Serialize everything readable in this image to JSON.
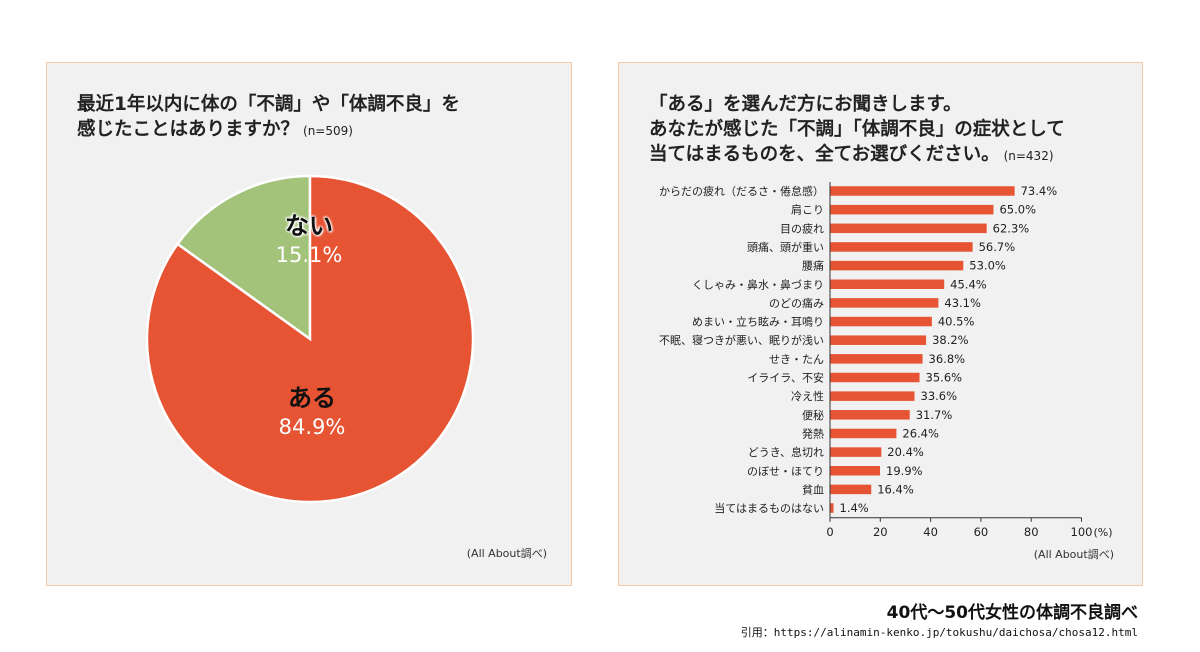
{
  "left_panel": {
    "title_line1": "最近1年以内に体の「不調」や「体調不良」を",
    "title_line2": "感じたことはありますか？",
    "n": "(n=509)",
    "source": "(All About調べ)"
  },
  "right_panel": {
    "title_line1": "「ある」を選んだ方にお聞きします。",
    "title_line2": "あなたが感じた「不調」「体調不良」の症状として",
    "title_line3": "当てはまるものを、全てお選びください。",
    "n": "(n=432)",
    "source": "(All About調べ)",
    "axis_unit": "(%)"
  },
  "footer": {
    "title": "40代〜50代女性の体調不良調べ",
    "citation": "引用：https://alinamin-kenko.jp/tokushu/daichosa/chosa12.html"
  },
  "colors": {
    "ari": "#e65433",
    "nai": "#a3c27a",
    "bar": "#e65433"
  },
  "chart_data": [
    {
      "type": "pie",
      "slices": [
        {
          "label": "ない",
          "value": 15.1,
          "display": "15.1%",
          "color": "#a3c27a"
        },
        {
          "label": "ある",
          "value": 84.9,
          "display": "84.9%",
          "color": "#e65433"
        }
      ]
    },
    {
      "type": "bar",
      "orientation": "horizontal",
      "categories": [
        "からだの疲れ（だるさ・倦怠感）",
        "肩こり",
        "目の疲れ",
        "頭痛、頭が重い",
        "腰痛",
        "くしゃみ・鼻水・鼻づまり",
        "のどの痛み",
        "めまい・立ち眩み・耳鳴り",
        "不眠、寝つきが悪い、眠りが浅い",
        "せき・たん",
        "イライラ、不安",
        "冷え性",
        "便秘",
        "発熱",
        "どうき、息切れ",
        "のぼせ・ほてり",
        "貧血",
        "当てはまるものはない"
      ],
      "values": [
        73.4,
        65.0,
        62.3,
        56.7,
        53.0,
        45.4,
        43.1,
        40.5,
        38.2,
        36.8,
        35.6,
        33.6,
        31.7,
        26.4,
        20.4,
        19.9,
        16.4,
        1.4
      ],
      "value_labels": [
        "73.4%",
        "65.0%",
        "62.3%",
        "56.7%",
        "53.0%",
        "45.4%",
        "43.1%",
        "40.5%",
        "38.2%",
        "36.8%",
        "35.6%",
        "33.6%",
        "31.7%",
        "26.4%",
        "20.4%",
        "19.9%",
        "16.4%",
        "1.4%"
      ],
      "xlim": [
        0,
        100
      ],
      "xticks": [
        0,
        20,
        40,
        60,
        80,
        100
      ],
      "grid": false
    }
  ]
}
